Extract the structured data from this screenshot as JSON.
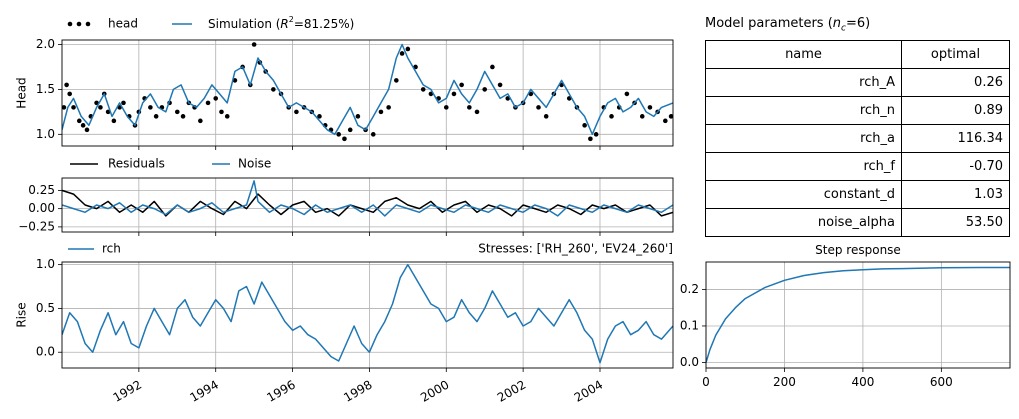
{
  "params_panel": {
    "title_prefix": "Model parameters (",
    "title_sym": "n",
    "title_sub": "c",
    "title_suffix": "=6)",
    "columns": [
      "name",
      "optimal"
    ],
    "rows": [
      {
        "name": "rch_A",
        "optimal": "0.26"
      },
      {
        "name": "rch_n",
        "optimal": "0.89"
      },
      {
        "name": "rch_a",
        "optimal": "116.34"
      },
      {
        "name": "rch_f",
        "optimal": "-0.70"
      },
      {
        "name": "constant_d",
        "optimal": "1.03"
      },
      {
        "name": "noise_alpha",
        "optimal": "53.50"
      }
    ]
  },
  "chart_data": [
    {
      "type": "line",
      "panel": "head",
      "ylabel": "Head",
      "ylim": [
        0.87,
        2.05
      ],
      "yticks": [
        1.0,
        1.5,
        2.0
      ],
      "ytick_labels": [
        "1.0",
        "1.5",
        "2.0"
      ],
      "xlim": [
        1990.0,
        2005.9
      ],
      "grid": true,
      "legend_placement": "top-left, outside",
      "legend": [
        "head",
        "Simulation (R²=81.25%)"
      ],
      "legend_parts": {
        "head": "head",
        "sim_prefix": "Simulation (",
        "sim_sym": "R",
        "sim_sup": "2",
        "sim_suffix": "=81.25%)"
      },
      "series": [
        {
          "name": "head",
          "style": "scatter",
          "color": "#000000",
          "x": [
            1990.05,
            1990.12,
            1990.2,
            1990.3,
            1990.45,
            1990.55,
            1990.65,
            1990.75,
            1990.9,
            1991.0,
            1991.1,
            1991.2,
            1991.35,
            1991.5,
            1991.6,
            1991.75,
            1991.9,
            1992.0,
            1992.15,
            1992.3,
            1992.45,
            1992.6,
            1992.8,
            1993.0,
            1993.15,
            1993.3,
            1993.45,
            1993.6,
            1993.8,
            1994.0,
            1994.15,
            1994.3,
            1994.5,
            1994.7,
            1994.9,
            1995.0,
            1995.15,
            1995.3,
            1995.5,
            1995.7,
            1995.9,
            1996.1,
            1996.3,
            1996.5,
            1996.7,
            1996.85,
            1997.0,
            1997.2,
            1997.35,
            1997.5,
            1997.7,
            1997.9,
            1998.1,
            1998.3,
            1998.5,
            1998.7,
            1998.85,
            1999.0,
            1999.2,
            1999.4,
            1999.6,
            1999.8,
            2000.0,
            2000.2,
            2000.4,
            2000.6,
            2000.8,
            2001.0,
            2001.2,
            2001.4,
            2001.6,
            2001.8,
            2002.0,
            2002.2,
            2002.4,
            2002.6,
            2002.8,
            2003.0,
            2003.2,
            2003.4,
            2003.6,
            2003.75,
            2003.9,
            2004.1,
            2004.3,
            2004.5,
            2004.7,
            2004.9,
            2005.1,
            2005.3,
            2005.5,
            2005.7,
            2005.85
          ],
          "values": [
            1.3,
            1.55,
            1.45,
            1.3,
            1.15,
            1.1,
            1.05,
            1.2,
            1.35,
            1.3,
            1.45,
            1.25,
            1.15,
            1.3,
            1.35,
            1.2,
            1.1,
            1.25,
            1.4,
            1.3,
            1.2,
            1.3,
            1.35,
            1.25,
            1.2,
            1.35,
            1.3,
            1.15,
            1.35,
            1.4,
            1.25,
            1.2,
            1.6,
            1.75,
            1.55,
            2.0,
            1.8,
            1.7,
            1.5,
            1.45,
            1.3,
            1.25,
            1.3,
            1.25,
            1.2,
            1.1,
            1.05,
            1.0,
            0.95,
            1.05,
            1.2,
            1.05,
            1.0,
            1.25,
            1.3,
            1.6,
            1.9,
            1.95,
            1.75,
            1.5,
            1.45,
            1.4,
            1.3,
            1.45,
            1.55,
            1.3,
            1.25,
            1.5,
            1.75,
            1.55,
            1.4,
            1.3,
            1.35,
            1.45,
            1.3,
            1.2,
            1.45,
            1.55,
            1.4,
            1.3,
            1.1,
            0.95,
            1.0,
            1.3,
            1.2,
            1.3,
            1.45,
            1.35,
            1.2,
            1.3,
            1.25,
            1.15,
            1.2
          ]
        },
        {
          "name": "Simulation (R²=81.25%)",
          "style": "line",
          "color": "#1f77b4",
          "x": [
            1990.0,
            1990.15,
            1990.3,
            1990.5,
            1990.7,
            1990.9,
            1991.1,
            1991.3,
            1991.5,
            1991.7,
            1991.9,
            1992.1,
            1992.3,
            1992.5,
            1992.7,
            1992.9,
            1993.1,
            1993.3,
            1993.5,
            1993.7,
            1993.9,
            1994.1,
            1994.3,
            1994.5,
            1994.7,
            1994.9,
            1995.1,
            1995.3,
            1995.5,
            1995.7,
            1995.9,
            1996.1,
            1996.3,
            1996.5,
            1996.7,
            1996.9,
            1997.1,
            1997.3,
            1997.5,
            1997.7,
            1997.9,
            1998.1,
            1998.3,
            1998.5,
            1998.7,
            1998.85,
            1999.0,
            1999.2,
            1999.4,
            1999.6,
            1999.8,
            2000.0,
            2000.2,
            2000.4,
            2000.6,
            2000.8,
            2001.0,
            2001.2,
            2001.4,
            2001.6,
            2001.8,
            2002.0,
            2002.2,
            2002.4,
            2002.6,
            2002.8,
            2003.0,
            2003.2,
            2003.4,
            2003.6,
            2003.8,
            2004.0,
            2004.2,
            2004.4,
            2004.6,
            2004.8,
            2005.0,
            2005.2,
            2005.4,
            2005.6,
            2005.9
          ],
          "values": [
            1.05,
            1.3,
            1.4,
            1.2,
            1.1,
            1.3,
            1.45,
            1.2,
            1.35,
            1.2,
            1.1,
            1.35,
            1.45,
            1.3,
            1.25,
            1.5,
            1.55,
            1.35,
            1.3,
            1.4,
            1.55,
            1.45,
            1.35,
            1.7,
            1.75,
            1.55,
            1.85,
            1.7,
            1.6,
            1.45,
            1.3,
            1.35,
            1.3,
            1.25,
            1.15,
            1.05,
            1.0,
            1.15,
            1.3,
            1.1,
            1.05,
            1.2,
            1.35,
            1.5,
            1.85,
            2.0,
            1.85,
            1.7,
            1.55,
            1.5,
            1.35,
            1.4,
            1.6,
            1.45,
            1.35,
            1.5,
            1.7,
            1.55,
            1.4,
            1.45,
            1.3,
            1.35,
            1.5,
            1.4,
            1.3,
            1.45,
            1.6,
            1.45,
            1.3,
            1.2,
            1.0,
            1.2,
            1.35,
            1.4,
            1.25,
            1.3,
            1.4,
            1.25,
            1.2,
            1.3,
            1.35
          ]
        }
      ]
    },
    {
      "type": "line",
      "panel": "residuals",
      "ylim": [
        -0.32,
        0.42
      ],
      "yticks": [
        -0.25,
        0.0,
        0.25
      ],
      "ytick_labels": [
        "−0.25",
        "0.00",
        "0.25"
      ],
      "xlim": [
        1990.0,
        2005.9
      ],
      "grid": true,
      "legend_placement": "top-left, outside",
      "legend": [
        "Residuals",
        "Noise"
      ],
      "series": [
        {
          "name": "Residuals",
          "color": "#000000",
          "x": [
            1990.0,
            1990.3,
            1990.6,
            1990.9,
            1991.2,
            1991.5,
            1991.8,
            1992.1,
            1992.4,
            1992.7,
            1993.0,
            1993.3,
            1993.6,
            1993.9,
            1994.2,
            1994.5,
            1994.8,
            1995.1,
            1995.4,
            1995.7,
            1996.0,
            1996.3,
            1996.6,
            1996.9,
            1997.2,
            1997.5,
            1997.8,
            1998.1,
            1998.4,
            1998.7,
            1999.0,
            1999.3,
            1999.6,
            1999.9,
            2000.2,
            2000.5,
            2000.8,
            2001.1,
            2001.4,
            2001.7,
            2002.0,
            2002.3,
            2002.6,
            2002.9,
            2003.2,
            2003.5,
            2003.8,
            2004.1,
            2004.4,
            2004.7,
            2005.0,
            2005.3,
            2005.6,
            2005.9
          ],
          "values": [
            0.25,
            0.2,
            0.05,
            0.0,
            0.1,
            -0.05,
            0.05,
            -0.05,
            0.1,
            -0.1,
            0.05,
            -0.05,
            0.1,
            0.0,
            -0.08,
            0.1,
            0.0,
            0.2,
            0.05,
            -0.08,
            0.05,
            0.1,
            -0.05,
            0.0,
            -0.1,
            0.05,
            0.0,
            -0.05,
            0.1,
            0.15,
            0.05,
            0.0,
            0.1,
            -0.05,
            0.05,
            0.1,
            -0.05,
            0.05,
            0.0,
            -0.1,
            0.05,
            0.0,
            -0.05,
            0.05,
            0.0,
            -0.08,
            0.05,
            0.0,
            0.05,
            -0.05,
            0.0,
            0.05,
            -0.1,
            -0.05
          ]
        },
        {
          "name": "Noise",
          "color": "#1f77b4",
          "x": [
            1990.0,
            1990.3,
            1990.6,
            1990.9,
            1991.2,
            1991.5,
            1991.8,
            1992.1,
            1992.4,
            1992.7,
            1993.0,
            1993.3,
            1993.6,
            1993.9,
            1994.2,
            1994.5,
            1994.8,
            1995.0,
            1995.1,
            1995.4,
            1995.7,
            1996.0,
            1996.3,
            1996.6,
            1996.9,
            1997.2,
            1997.5,
            1997.8,
            1998.1,
            1998.4,
            1998.7,
            1999.0,
            1999.3,
            1999.6,
            1999.9,
            2000.2,
            2000.5,
            2000.8,
            2001.1,
            2001.4,
            2001.7,
            2002.0,
            2002.3,
            2002.6,
            2002.9,
            2003.2,
            2003.5,
            2003.8,
            2004.1,
            2004.4,
            2004.7,
            2005.0,
            2005.3,
            2005.6,
            2005.9
          ],
          "values": [
            0.05,
            0.0,
            -0.05,
            0.05,
            0.0,
            0.08,
            -0.05,
            0.05,
            0.0,
            -0.08,
            0.05,
            -0.05,
            0.0,
            0.08,
            -0.05,
            0.0,
            0.05,
            0.38,
            0.1,
            -0.05,
            0.05,
            0.0,
            -0.08,
            0.05,
            -0.05,
            0.0,
            0.05,
            -0.05,
            0.05,
            -0.1,
            0.05,
            0.0,
            -0.05,
            0.05,
            0.0,
            -0.05,
            0.05,
            0.0,
            -0.05,
            0.05,
            0.0,
            -0.05,
            0.05,
            0.0,
            -0.1,
            0.05,
            0.0,
            -0.05,
            0.05,
            0.0,
            -0.05,
            0.05,
            0.0,
            -0.05,
            0.05
          ]
        }
      ]
    },
    {
      "type": "line",
      "panel": "rise",
      "ylabel": "Rise",
      "ylim": [
        -0.18,
        1.03
      ],
      "yticks": [
        0.0,
        0.5,
        1.0
      ],
      "ytick_labels": [
        "0.0",
        "0.5",
        "1.0"
      ],
      "xlim": [
        1990.0,
        2005.9
      ],
      "xticks": [
        1992,
        1994,
        1996,
        1998,
        2000,
        2002,
        2004
      ],
      "xtick_labels": [
        "1992",
        "1994",
        "1996",
        "1998",
        "2000",
        "2002",
        "2004"
      ],
      "grid": true,
      "legend_placement": "top-left, outside",
      "legend": [
        "rch"
      ],
      "annotation": "Stresses: ['RH_260', 'EV24_260']",
      "series": [
        {
          "name": "rch",
          "color": "#1f77b4",
          "x": [
            1990.0,
            1990.2,
            1990.4,
            1990.6,
            1990.8,
            1991.0,
            1991.2,
            1991.4,
            1991.6,
            1991.8,
            1992.0,
            1992.2,
            1992.4,
            1992.6,
            1992.8,
            1993.0,
            1993.2,
            1993.4,
            1993.6,
            1993.8,
            1994.0,
            1994.2,
            1994.4,
            1994.6,
            1994.8,
            1995.0,
            1995.2,
            1995.4,
            1995.6,
            1995.8,
            1996.0,
            1996.2,
            1996.4,
            1996.6,
            1996.8,
            1997.0,
            1997.2,
            1997.4,
            1997.6,
            1997.8,
            1998.0,
            1998.2,
            1998.4,
            1998.6,
            1998.8,
            1999.0,
            1999.2,
            1999.4,
            1999.6,
            1999.8,
            2000.0,
            2000.2,
            2000.4,
            2000.6,
            2000.8,
            2001.0,
            2001.2,
            2001.4,
            2001.6,
            2001.8,
            2002.0,
            2002.2,
            2002.4,
            2002.6,
            2002.8,
            2003.0,
            2003.2,
            2003.4,
            2003.6,
            2003.8,
            2004.0,
            2004.2,
            2004.4,
            2004.6,
            2004.8,
            2005.0,
            2005.2,
            2005.4,
            2005.6,
            2005.9
          ],
          "values": [
            0.2,
            0.45,
            0.35,
            0.1,
            0.0,
            0.25,
            0.45,
            0.2,
            0.35,
            0.1,
            0.05,
            0.3,
            0.5,
            0.35,
            0.2,
            0.5,
            0.6,
            0.4,
            0.3,
            0.45,
            0.6,
            0.5,
            0.35,
            0.7,
            0.75,
            0.55,
            0.8,
            0.65,
            0.5,
            0.35,
            0.25,
            0.3,
            0.2,
            0.15,
            0.05,
            -0.05,
            -0.1,
            0.1,
            0.3,
            0.1,
            0.0,
            0.2,
            0.35,
            0.55,
            0.85,
            1.0,
            0.85,
            0.7,
            0.55,
            0.5,
            0.35,
            0.4,
            0.6,
            0.45,
            0.35,
            0.5,
            0.7,
            0.55,
            0.4,
            0.45,
            0.3,
            0.35,
            0.5,
            0.4,
            0.3,
            0.45,
            0.6,
            0.45,
            0.25,
            0.15,
            -0.12,
            0.15,
            0.3,
            0.35,
            0.2,
            0.25,
            0.35,
            0.2,
            0.15,
            0.3
          ]
        }
      ]
    },
    {
      "type": "line",
      "panel": "step",
      "title": "Step response",
      "xlim": [
        0,
        775
      ],
      "ylim": [
        -0.015,
        0.275
      ],
      "xticks": [
        0,
        200,
        400,
        600
      ],
      "xtick_labels": [
        "0",
        "200",
        "400",
        "600"
      ],
      "yticks": [
        0.0,
        0.1,
        0.2
      ],
      "ytick_labels": [
        "0.0",
        "0.1",
        "0.2"
      ],
      "grid": true,
      "series": [
        {
          "name": "rch",
          "color": "#1f77b4",
          "x": [
            0,
            10,
            25,
            50,
            75,
            100,
            150,
            200,
            250,
            300,
            350,
            400,
            450,
            500,
            600,
            700,
            775
          ],
          "values": [
            0.0,
            0.035,
            0.075,
            0.12,
            0.15,
            0.175,
            0.205,
            0.225,
            0.238,
            0.246,
            0.251,
            0.254,
            0.256,
            0.257,
            0.259,
            0.26,
            0.26
          ]
        }
      ]
    }
  ]
}
